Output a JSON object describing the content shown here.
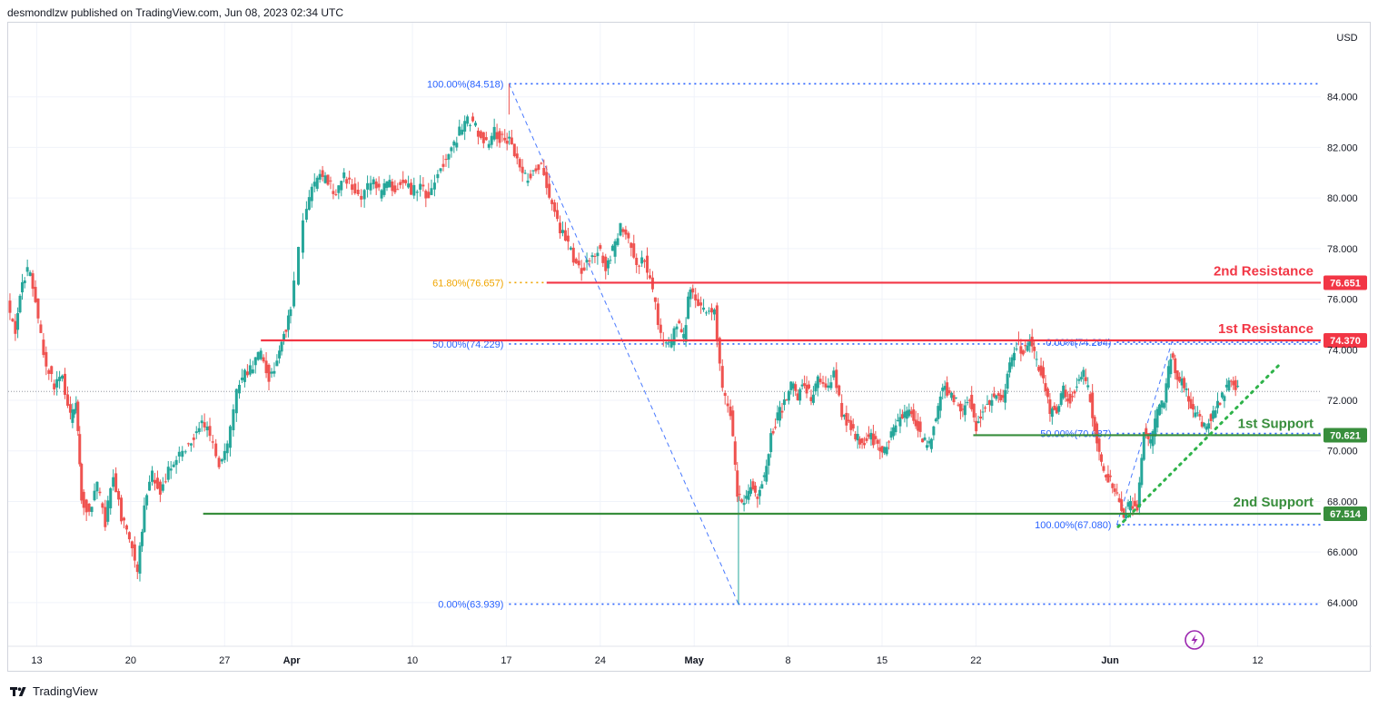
{
  "header": {
    "publish_text": "desmondlzw published on TradingView.com, Jun 08, 2023 02:34 UTC"
  },
  "footer": {
    "brand": "TradingView"
  },
  "colors": {
    "up": "#26a69a",
    "down": "#ef5350",
    "resistance": "#f23645",
    "support": "#388e3c",
    "fib": "#2962ff",
    "fib_gold": "#f0a500",
    "grid": "#f0f3fa",
    "axis_text": "#131722",
    "current_price_line": "#9598a1",
    "bolt": "#9c27b0"
  },
  "chart_data": {
    "type": "candlestick",
    "currency_label": "USD",
    "y_ticks": [
      "64.000",
      "66.000",
      "68.000",
      "70.000",
      "72.000",
      "74.000",
      "76.000",
      "78.000",
      "80.000",
      "82.000",
      "84.000"
    ],
    "ylim": [
      62.2,
      86.4
    ],
    "x_ticks": [
      {
        "label": "13",
        "day": 0
      },
      {
        "label": "20",
        "day": 7
      },
      {
        "label": "27",
        "day": 14
      },
      {
        "label": "Apr",
        "day": 19
      },
      {
        "label": "10",
        "day": 28
      },
      {
        "label": "17",
        "day": 35
      },
      {
        "label": "24",
        "day": 42
      },
      {
        "label": "May",
        "day": 49
      },
      {
        "label": "8",
        "day": 56
      },
      {
        "label": "15",
        "day": 63
      },
      {
        "label": "22",
        "day": 70
      },
      {
        "label": "Jun",
        "day": 80
      },
      {
        "label": "12",
        "day": 91
      }
    ],
    "xlim_days": [
      -2.3,
      100.8
    ],
    "bold_ticks": [
      "Apr",
      "May",
      "Jun"
    ],
    "price_path": [
      [
        -2.1,
        75.8
      ],
      [
        -1.5,
        74.6
      ],
      [
        -1.0,
        76.8
      ],
      [
        -0.4,
        77.2
      ],
      [
        0.2,
        75.2
      ],
      [
        0.8,
        73.4
      ],
      [
        1.4,
        72.6
      ],
      [
        2.0,
        73.0
      ],
      [
        2.6,
        71.3
      ],
      [
        3.0,
        71.8
      ],
      [
        3.4,
        68.2
      ],
      [
        4.0,
        67.5
      ],
      [
        4.6,
        68.6
      ],
      [
        5.2,
        67.2
      ],
      [
        5.8,
        69.1
      ],
      [
        6.4,
        67.4
      ],
      [
        7.0,
        66.6
      ],
      [
        7.6,
        65.2
      ],
      [
        8.1,
        67.9
      ],
      [
        8.7,
        69.0
      ],
      [
        9.3,
        68.4
      ],
      [
        9.9,
        69.2
      ],
      [
        10.5,
        69.7
      ],
      [
        11.2,
        70.2
      ],
      [
        11.8,
        70.6
      ],
      [
        12.4,
        71.2
      ],
      [
        13.0,
        70.6
      ],
      [
        13.7,
        69.4
      ],
      [
        14.3,
        70.1
      ],
      [
        15.0,
        72.4
      ],
      [
        15.6,
        73.0
      ],
      [
        16.2,
        73.4
      ],
      [
        16.8,
        73.9
      ],
      [
        17.4,
        72.9
      ],
      [
        18.0,
        73.6
      ],
      [
        18.5,
        74.6
      ],
      [
        19.0,
        75.5
      ],
      [
        20.0,
        79.3
      ],
      [
        20.6,
        80.4
      ],
      [
        21.2,
        80.9
      ],
      [
        21.8,
        80.6
      ],
      [
        22.4,
        80.2
      ],
      [
        23.0,
        80.9
      ],
      [
        23.6,
        80.4
      ],
      [
        24.3,
        80.1
      ],
      [
        25.0,
        80.7
      ],
      [
        25.6,
        80.2
      ],
      [
        26.2,
        80.6
      ],
      [
        26.8,
        80.3
      ],
      [
        27.4,
        80.8
      ],
      [
        28.0,
        80.2
      ],
      [
        28.7,
        80.5
      ],
      [
        29.3,
        79.9
      ],
      [
        30.0,
        80.9
      ],
      [
        30.6,
        81.6
      ],
      [
        31.2,
        82.2
      ],
      [
        31.8,
        82.8
      ],
      [
        32.4,
        83.1
      ],
      [
        33.0,
        82.6
      ],
      [
        33.6,
        82.1
      ],
      [
        34.2,
        82.6
      ],
      [
        34.8,
        82.3
      ],
      [
        35.3,
        82.4
      ],
      [
        35.9,
        81.4
      ],
      [
        36.5,
        80.8
      ],
      [
        37.1,
        81.1
      ],
      [
        37.7,
        81.3
      ],
      [
        38.3,
        80.1
      ],
      [
        38.9,
        79.0
      ],
      [
        39.5,
        78.4
      ],
      [
        40.1,
        77.6
      ],
      [
        40.7,
        77.1
      ],
      [
        41.3,
        77.6
      ],
      [
        41.9,
        78.0
      ],
      [
        42.5,
        77.3
      ],
      [
        43.0,
        77.9
      ],
      [
        43.6,
        78.8
      ],
      [
        44.2,
        78.4
      ],
      [
        44.8,
        77.3
      ],
      [
        45.4,
        77.6
      ],
      [
        46.0,
        76.2
      ],
      [
        46.6,
        74.6
      ],
      [
        47.2,
        74.1
      ],
      [
        47.8,
        75.0
      ],
      [
        48.3,
        74.5
      ],
      [
        48.8,
        76.6
      ],
      [
        49.4,
        75.8
      ],
      [
        50.0,
        75.4
      ],
      [
        50.6,
        75.7
      ],
      [
        51.2,
        72.4
      ],
      [
        51.8,
        71.5
      ],
      [
        52.3,
        68.4
      ],
      [
        52.8,
        67.9
      ],
      [
        53.3,
        68.6
      ],
      [
        53.8,
        68.3
      ],
      [
        54.3,
        69.0
      ],
      [
        54.8,
        70.6
      ],
      [
        55.3,
        71.4
      ],
      [
        55.8,
        71.9
      ],
      [
        56.3,
        72.6
      ],
      [
        56.8,
        72.2
      ],
      [
        57.3,
        72.6
      ],
      [
        57.8,
        72.1
      ],
      [
        58.3,
        73.0
      ],
      [
        58.9,
        72.3
      ],
      [
        59.5,
        73.1
      ],
      [
        60.1,
        71.5
      ],
      [
        60.6,
        71.0
      ],
      [
        61.1,
        70.6
      ],
      [
        61.6,
        70.3
      ],
      [
        62.1,
        70.6
      ],
      [
        62.6,
        70.3
      ],
      [
        63.1,
        69.8
      ],
      [
        63.6,
        70.5
      ],
      [
        64.1,
        71.0
      ],
      [
        64.6,
        71.4
      ],
      [
        65.1,
        71.6
      ],
      [
        65.6,
        71.2
      ],
      [
        66.1,
        70.4
      ],
      [
        66.6,
        70.2
      ],
      [
        67.1,
        71.4
      ],
      [
        67.6,
        72.6
      ],
      [
        68.1,
        72.3
      ],
      [
        68.6,
        72.0
      ],
      [
        69.1,
        71.5
      ],
      [
        69.6,
        72.1
      ],
      [
        70.1,
        71.0
      ],
      [
        70.6,
        71.7
      ],
      [
        71.1,
        71.9
      ],
      [
        71.6,
        72.4
      ],
      [
        72.1,
        72.1
      ],
      [
        72.6,
        73.4
      ],
      [
        73.1,
        74.2
      ],
      [
        73.6,
        74.0
      ],
      [
        74.1,
        74.3
      ],
      [
        74.6,
        73.5
      ],
      [
        75.1,
        72.9
      ],
      [
        75.6,
        71.5
      ],
      [
        76.1,
        71.7
      ],
      [
        76.6,
        72.4
      ],
      [
        77.1,
        72.0
      ],
      [
        77.6,
        72.7
      ],
      [
        78.1,
        73.0
      ],
      [
        78.6,
        72.1
      ],
      [
        79.1,
        70.3
      ],
      [
        79.6,
        69.1
      ],
      [
        80.1,
        68.8
      ],
      [
        80.6,
        68.2
      ],
      [
        81.1,
        67.4
      ],
      [
        81.6,
        68.0
      ],
      [
        82.1,
        67.7
      ],
      [
        82.6,
        70.7
      ],
      [
        83.1,
        70.3
      ],
      [
        83.6,
        71.5
      ],
      [
        84.1,
        72.1
      ],
      [
        84.6,
        73.8
      ],
      [
        85.1,
        72.9
      ],
      [
        85.6,
        72.6
      ],
      [
        86.1,
        71.7
      ],
      [
        86.6,
        71.3
      ],
      [
        87.1,
        70.9
      ],
      [
        87.6,
        71.4
      ],
      [
        88.1,
        71.8
      ],
      [
        88.6,
        72.3
      ],
      [
        89.1,
        72.8
      ],
      [
        89.6,
        72.4
      ]
    ],
    "levels": [
      {
        "name": "2nd Resistance",
        "value": 76.651,
        "badge": "76.651",
        "kind": "resistance",
        "start_day": 38.0
      },
      {
        "name": "1st Resistance",
        "value": 74.37,
        "badge": "74.370",
        "kind": "resistance",
        "start_day": 16.7
      },
      {
        "name": "1st Support",
        "value": 70.621,
        "badge": "70.621",
        "kind": "support",
        "start_day": 69.8
      },
      {
        "name": "2nd Support",
        "value": 67.514,
        "badge": "67.514",
        "kind": "support",
        "start_day": 12.4
      }
    ],
    "fib_levels": [
      {
        "label": "100.00%(84.518)",
        "value": 84.518,
        "start_day": 35.2,
        "gold": false
      },
      {
        "label": "61.80%(76.657)",
        "value": 76.657,
        "start_day": 35.2,
        "gold": true
      },
      {
        "label": "50.00%(74.229)",
        "value": 74.229,
        "start_day": 35.2,
        "gold": false
      },
      {
        "label": "0.00%(63.939)",
        "value": 63.939,
        "start_day": 35.2,
        "gold": false
      },
      {
        "label": "50.00%(70.687)",
        "value": 70.687,
        "start_day": 80.5,
        "gold": false
      },
      {
        "label": "100.00%(67.080)",
        "value": 67.08,
        "start_day": 80.5,
        "gold": false
      },
      {
        "label": "0.00%(74.294)",
        "value": 74.294,
        "start_day": 80.5,
        "gold": false
      }
    ],
    "fib_diagonals": [
      {
        "from": [
          35.2,
          84.518
        ],
        "to": [
          52.3,
          63.939
        ]
      },
      {
        "from": [
          80.5,
          67.08
        ],
        "to": [
          84.6,
          74.294
        ]
      }
    ],
    "trendline": {
      "from": [
        80.6,
        67.0
      ],
      "to": [
        92.6,
        73.4
      ]
    },
    "current_price": 72.35
  }
}
